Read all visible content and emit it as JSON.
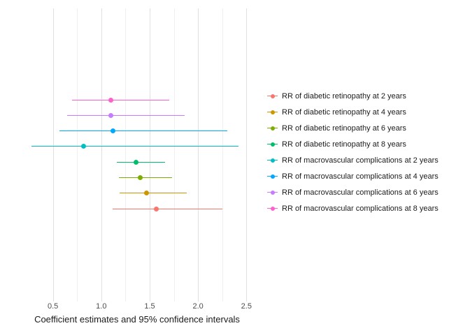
{
  "chart_data": {
    "type": "scatter",
    "subtype": "forest-plot",
    "title": "",
    "xlabel": "Coefficient estimates and 95% confidence intervals",
    "ylabel": "",
    "xlim": [
      0.17,
      2.57
    ],
    "x_ticks": [
      0.5,
      1.0,
      1.5,
      2.0,
      2.5
    ],
    "x_tick_labels": [
      "0.5",
      "1.0",
      "1.5",
      "2.0",
      "2.5"
    ],
    "grid": {
      "major": [
        0.5,
        1.0,
        1.5,
        2.0,
        2.5
      ],
      "minor": [
        0.75,
        1.25,
        1.75,
        2.25
      ]
    },
    "legend_position": "right",
    "series": [
      {
        "name": "RR of diabetic retinopathy at 2 years",
        "color": "#F8766D",
        "estimate": 1.57,
        "lower": 1.12,
        "upper": 2.25
      },
      {
        "name": "RR of diabetic retinopathy at 4 years",
        "color": "#CD9600",
        "estimate": 1.47,
        "lower": 1.19,
        "upper": 1.88
      },
      {
        "name": "RR of diabetic retinopathy at 6 years",
        "color": "#7CAE00",
        "estimate": 1.4,
        "lower": 1.18,
        "upper": 1.73
      },
      {
        "name": "RR of diabetic retinopathy at 8 years",
        "color": "#00BE67",
        "estimate": 1.36,
        "lower": 1.16,
        "upper": 1.66
      },
      {
        "name": "RR of macrovascular complications at 2 years",
        "color": "#00BFC4",
        "estimate": 0.82,
        "lower": 0.28,
        "upper": 2.42
      },
      {
        "name": "RR of macrovascular complications at 4 years",
        "color": "#00A9FF",
        "estimate": 1.12,
        "lower": 0.57,
        "upper": 2.3
      },
      {
        "name": "RR of macrovascular complications at 6 years",
        "color": "#C77CFF",
        "estimate": 1.1,
        "lower": 0.65,
        "upper": 1.86
      },
      {
        "name": "RR of macrovascular complications at 8 years",
        "color": "#FF61CC",
        "estimate": 1.1,
        "lower": 0.7,
        "upper": 1.7
      }
    ],
    "plot_order_top_to_bottom": [
      7,
      6,
      5,
      4,
      3,
      2,
      1,
      0
    ]
  }
}
